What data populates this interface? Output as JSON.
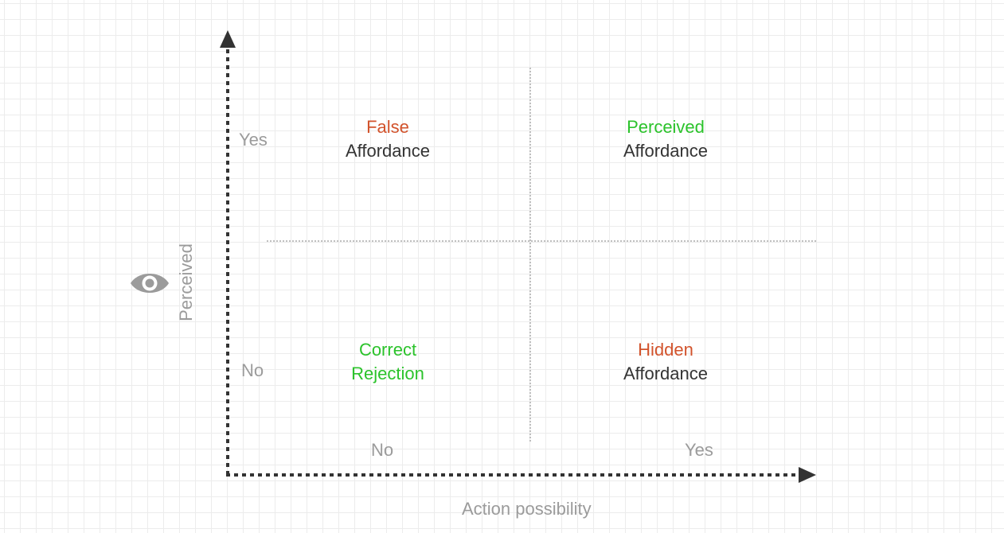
{
  "axes": {
    "x_title": "Action possibility",
    "y_title": "Perceived",
    "x_ticks": [
      "No",
      "Yes"
    ],
    "y_ticks": [
      "Yes",
      "No"
    ]
  },
  "quadrants": {
    "top_left": {
      "line1": "False",
      "line2": "Affordance"
    },
    "top_right": {
      "line1": "Perceived",
      "line2": "Affordance"
    },
    "bottom_left": {
      "line1": "Correct",
      "line2": "Rejection"
    },
    "bottom_right": {
      "line1": "Hidden",
      "line2": "Affordance"
    }
  },
  "icons": {
    "y_axis_icon": "eye-icon"
  },
  "colors": {
    "axis": "#333333",
    "tick_label": "#9b9b9b",
    "positive": "#2bc32b",
    "negative": "#d2532c",
    "text": "#333333",
    "divider": "#999999"
  }
}
